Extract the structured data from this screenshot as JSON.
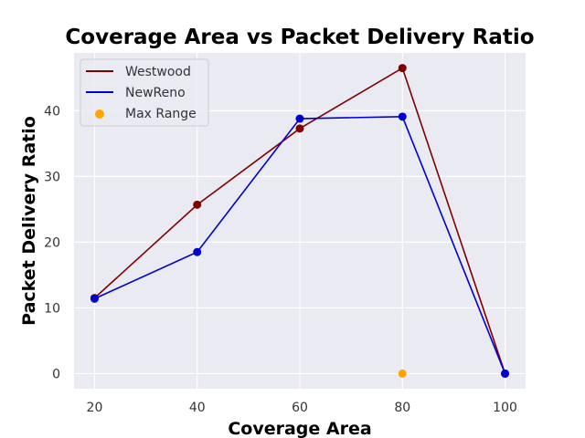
{
  "chart_data": {
    "type": "line",
    "title": "Coverage Area vs Packet Delivery Ratio",
    "xlabel": "Coverage Area",
    "ylabel": "Packet Delivery Ratio",
    "x": [
      20,
      40,
      60,
      80,
      100
    ],
    "x_ticks": [
      20,
      40,
      60,
      80,
      100
    ],
    "y_ticks": [
      0,
      10,
      20,
      30,
      40
    ],
    "xlim": [
      16,
      104
    ],
    "ylim": [
      -2.3,
      48.8
    ],
    "grid": true,
    "legend_position": "top-left",
    "background": "#eaeaf2",
    "series": [
      {
        "name": "Westwood",
        "kind": "line",
        "color": "#800000",
        "values": [
          11.5,
          25.7,
          37.3,
          46.5,
          0
        ]
      },
      {
        "name": "NewReno",
        "kind": "line",
        "color": "#0000cd",
        "values": [
          11.4,
          18.5,
          38.8,
          39.1,
          0
        ]
      },
      {
        "name": "Max Range",
        "kind": "scatter",
        "color": "#ffa500",
        "points": [
          [
            80,
            0
          ]
        ]
      }
    ]
  }
}
